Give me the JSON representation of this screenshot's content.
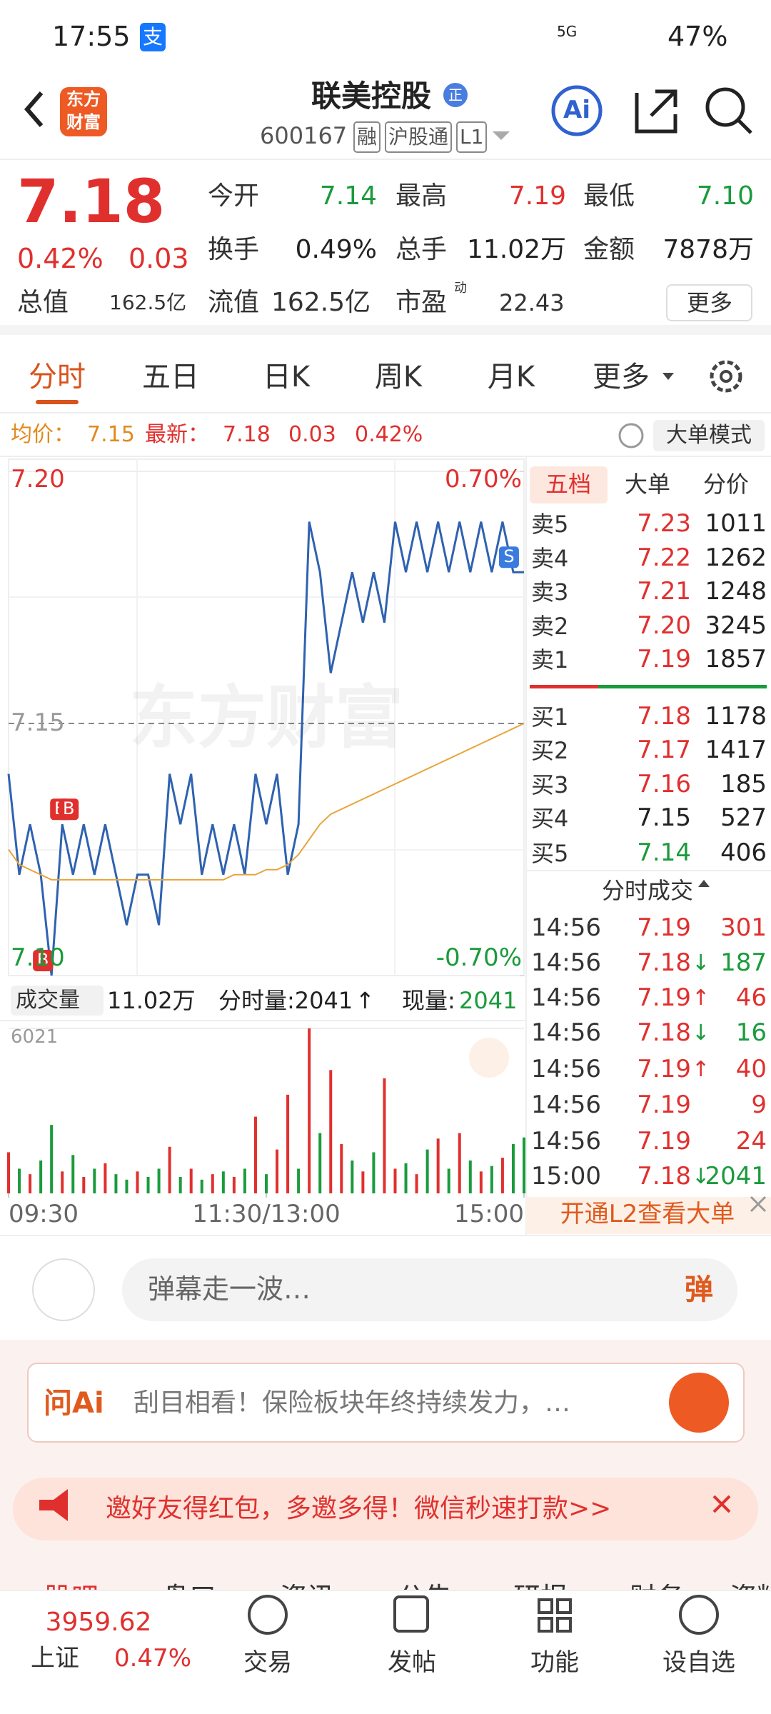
{
  "status_bar": {
    "time": "17:55",
    "app_badge": "支",
    "network": "5G",
    "battery": "47%"
  },
  "header": {
    "title": "联美控股",
    "badge": "正",
    "code": "600167",
    "tags": [
      "融",
      "沪股通",
      "L1"
    ],
    "logo": [
      "东方",
      "财富"
    ],
    "ai": "Ai"
  },
  "quote": {
    "price": "7.18",
    "change_pct": "0.42%",
    "change": "0.03",
    "fields": [
      {
        "label": "今开",
        "value": "7.14",
        "color": "#1a9b3c"
      },
      {
        "label": "最高",
        "value": "7.19",
        "color": "#e0302e"
      },
      {
        "label": "最低",
        "value": "7.10",
        "color": "#1a9b3c"
      },
      {
        "label": "换手",
        "value": "0.49%",
        "color": "#222222"
      },
      {
        "label": "总手",
        "value": "11.02万",
        "color": "#222222"
      },
      {
        "label": "金额",
        "value": "7878万",
        "color": "#222222"
      }
    ],
    "market_cap": {
      "label": "总值",
      "value": "162.5亿"
    },
    "float_cap": {
      "label": "流值",
      "value": "162.5亿"
    },
    "pe": {
      "label": "市盈",
      "sup": "动",
      "value": "22.43"
    },
    "more": "更多"
  },
  "tabs": [
    "分时",
    "五日",
    "日K",
    "周K",
    "月K",
    "更多"
  ],
  "legend_values": {
    "avg": "7.15",
    "latest": "7.18",
    "change": "0.03",
    "pct": "0.42%",
    "mode": "大单模式"
  },
  "chart_data": [
    {
      "type": "line",
      "watermark": "东方财富",
      "xlim": [
        0,
        240
      ],
      "ylim": [
        7.1,
        7.2
      ],
      "yticks": [
        {
          "value": 7.2,
          "label": "7.20"
        },
        {
          "value": 7.15,
          "label": "7.15"
        },
        {
          "value": 7.1,
          "label": "7.10"
        }
      ],
      "y2lim": [
        -0.7,
        0.7
      ],
      "y2ticks": [
        {
          "value": 0.7,
          "label": "0.70%"
        },
        {
          "value": -0.7,
          "label": "-0.70%"
        }
      ],
      "x": [
        0,
        5,
        10,
        15,
        20,
        25,
        30,
        35,
        40,
        45,
        50,
        55,
        60,
        65,
        70,
        75,
        80,
        85,
        90,
        95,
        100,
        105,
        110,
        115,
        120,
        125,
        130,
        135,
        140,
        145,
        150,
        155,
        160,
        165,
        170,
        175,
        180,
        185,
        190,
        195,
        200,
        205,
        210,
        215,
        220,
        225,
        230,
        235,
        240
      ],
      "series": [
        {
          "name": "最新：",
          "color": "#2f62b0",
          "values": [
            7.14,
            7.12,
            7.13,
            7.12,
            7.1,
            7.13,
            7.12,
            7.13,
            7.12,
            7.13,
            7.12,
            7.11,
            7.12,
            7.12,
            7.11,
            7.14,
            7.13,
            7.14,
            7.12,
            7.13,
            7.12,
            7.13,
            7.12,
            7.14,
            7.13,
            7.14,
            7.12,
            7.13,
            7.19,
            7.18,
            7.16,
            7.17,
            7.18,
            7.17,
            7.18,
            7.17,
            7.19,
            7.18,
            7.19,
            7.18,
            7.19,
            7.18,
            7.19,
            7.18,
            7.19,
            7.18,
            7.19,
            7.18,
            7.18
          ]
        },
        {
          "name": "均价：",
          "color": "#e8a53c",
          "values": [
            7.125,
            7.122,
            7.121,
            7.12,
            7.119,
            7.119,
            7.119,
            7.119,
            7.119,
            7.119,
            7.119,
            7.119,
            7.119,
            7.119,
            7.119,
            7.119,
            7.119,
            7.119,
            7.119,
            7.119,
            7.119,
            7.12,
            7.12,
            7.12,
            7.121,
            7.121,
            7.122,
            7.124,
            7.127,
            7.13,
            7.132,
            7.133,
            7.134,
            7.135,
            7.136,
            7.137,
            7.138,
            7.139,
            7.14,
            7.141,
            7.142,
            7.143,
            7.144,
            7.145,
            7.146,
            7.147,
            7.148,
            7.149,
            7.15
          ]
        }
      ],
      "markers": [
        {
          "label": "B",
          "x": 16,
          "y": 7.1
        },
        {
          "label": "B",
          "x": 24,
          "y": 7.13
        },
        {
          "label": "B",
          "x": 28,
          "y": 7.13
        },
        {
          "label": "S",
          "x": 233,
          "y": 7.18
        }
      ]
    },
    {
      "type": "bar",
      "xlim": [
        0,
        240
      ],
      "xticks": [
        {
          "value": 0,
          "label": "09:30"
        },
        {
          "value": 120,
          "label": "11:30/13:00"
        },
        {
          "value": 240,
          "label": "15:00"
        }
      ],
      "ylim": [
        0,
        6021
      ],
      "yticks": [
        6021
      ],
      "x": [
        0,
        5,
        10,
        15,
        20,
        25,
        30,
        35,
        40,
        45,
        50,
        55,
        60,
        65,
        70,
        75,
        80,
        85,
        90,
        95,
        100,
        105,
        110,
        115,
        120,
        125,
        130,
        135,
        140,
        145,
        150,
        155,
        160,
        165,
        170,
        175,
        180,
        185,
        190,
        195,
        200,
        205,
        210,
        215,
        220,
        225,
        230,
        235,
        240
      ],
      "values": [
        1500,
        900,
        700,
        1200,
        2500,
        800,
        1400,
        600,
        900,
        1100,
        700,
        500,
        800,
        600,
        900,
        1700,
        600,
        900,
        500,
        700,
        800,
        600,
        900,
        2800,
        700,
        1600,
        3600,
        900,
        6021,
        2200,
        4500,
        1800,
        1200,
        800,
        1500,
        4200,
        900,
        1100,
        700,
        1600,
        2000,
        900,
        2200,
        1200,
        800,
        1000,
        1300,
        1800,
        2041
      ],
      "colors": [
        "#e0302e",
        "#1a9b3c",
        "#e0302e",
        "#1a9b3c",
        "#1a9b3c",
        "#e0302e",
        "#1a9b3c",
        "#e0302e",
        "#1a9b3c",
        "#e0302e",
        "#1a9b3c",
        "#1a9b3c",
        "#e0302e",
        "#1a9b3c",
        "#1a9b3c",
        "#e0302e",
        "#1a9b3c",
        "#e0302e",
        "#1a9b3c",
        "#e0302e",
        "#1a9b3c",
        "#e0302e",
        "#1a9b3c",
        "#e0302e",
        "#1a9b3c",
        "#e0302e",
        "#e0302e",
        "#1a9b3c",
        "#e0302e",
        "#1a9b3c",
        "#e0302e",
        "#e0302e",
        "#1a9b3c",
        "#e0302e",
        "#1a9b3c",
        "#e0302e",
        "#e0302e",
        "#1a9b3c",
        "#e0302e",
        "#1a9b3c",
        "#e0302e",
        "#1a9b3c",
        "#e0302e",
        "#1a9b3c",
        "#e0302e",
        "#1a9b3c",
        "#e0302e",
        "#1a9b3c",
        "#1a9b3c"
      ]
    }
  ],
  "volume_header": {
    "selector": "成交量",
    "total": "11.02万",
    "tick_label": "分时量:2041",
    "tick_arrow": "↑",
    "now_label": "现量:",
    "now": "2041"
  },
  "order_book": {
    "tabs": [
      "五档",
      "大单",
      "分价"
    ],
    "asks": [
      {
        "label": "卖5",
        "price": "7.23",
        "volume": "1011",
        "color": "#e0302e"
      },
      {
        "label": "卖4",
        "price": "7.22",
        "volume": "1262",
        "color": "#e0302e"
      },
      {
        "label": "卖3",
        "price": "7.21",
        "volume": "1248",
        "color": "#e0302e"
      },
      {
        "label": "卖2",
        "price": "7.20",
        "volume": "3245",
        "color": "#e0302e"
      },
      {
        "label": "卖1",
        "price": "7.19",
        "volume": "1857",
        "color": "#e0302e"
      }
    ],
    "bids": [
      {
        "label": "买1",
        "price": "7.18",
        "volume": "1178",
        "color": "#e0302e"
      },
      {
        "label": "买2",
        "price": "7.17",
        "volume": "1417",
        "color": "#e0302e"
      },
      {
        "label": "买3",
        "price": "7.16",
        "volume": "185",
        "color": "#e0302e"
      },
      {
        "label": "买4",
        "price": "7.15",
        "volume": "527",
        "color": "#222222"
      },
      {
        "label": "买5",
        "price": "7.14",
        "volume": "406",
        "color": "#1a9b3c"
      }
    ]
  },
  "trades": {
    "title": "分时成交",
    "rows": [
      {
        "time": "14:56",
        "price": "7.19",
        "volume": "301",
        "color": "#e0302e"
      },
      {
        "time": "14:56",
        "price": "7.18",
        "arrow": "↓",
        "volume": "187",
        "color": "#1a9b3c"
      },
      {
        "time": "14:56",
        "price": "7.19",
        "arrow": "↑",
        "volume": "46",
        "color": "#e0302e"
      },
      {
        "time": "14:56",
        "price": "7.18",
        "arrow": "↓",
        "volume": "16",
        "color": "#1a9b3c"
      },
      {
        "time": "14:56",
        "price": "7.19",
        "arrow": "↑",
        "volume": "40",
        "color": "#e0302e"
      },
      {
        "time": "14:56",
        "price": "7.19",
        "volume": "9",
        "color": "#e0302e"
      },
      {
        "time": "14:56",
        "price": "7.19",
        "volume": "24",
        "color": "#e0302e"
      },
      {
        "time": "15:00",
        "price": "7.18",
        "arrow": "↓",
        "volume": "2041",
        "color": "#1a9b3c"
      }
    ]
  },
  "l2_promo": "开通L2查看大单",
  "comment": {
    "placeholder": "弹幕走一波…",
    "button": "弹"
  },
  "ai_bar": {
    "logo": "问Ai",
    "text": "刮目相看！保险板块年终持续发力，…"
  },
  "banner": "邀好友得红包，多邀多得！微信秒速打款>>",
  "section_tabs": [
    "股吧",
    "盘口",
    "资讯",
    "公告",
    "研报",
    "财务",
    "资料"
  ],
  "bottom_nav": {
    "index": {
      "value": "3959.62",
      "name": "上证",
      "pct": "0.47%"
    },
    "items": [
      "交易",
      "发帖",
      "功能",
      "设自选"
    ]
  }
}
